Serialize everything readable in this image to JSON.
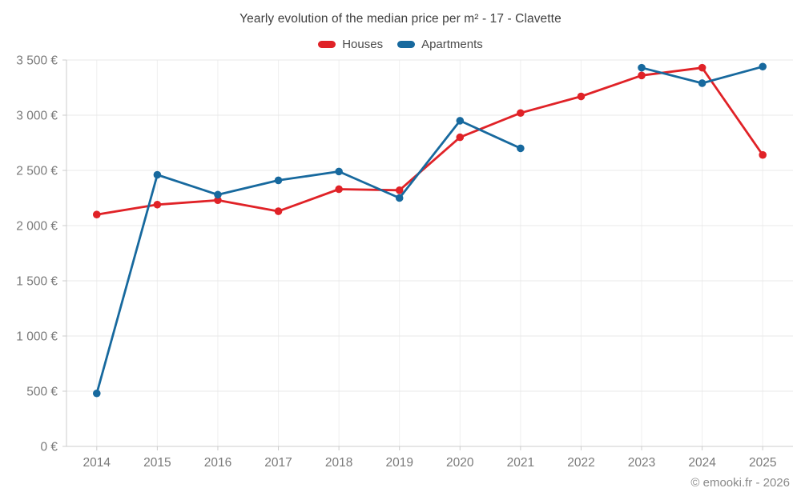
{
  "chart_data": {
    "type": "line",
    "title": "Yearly evolution of the median price per m² - 17 - Clavette",
    "categories": [
      "2014",
      "2015",
      "2016",
      "2017",
      "2018",
      "2019",
      "2020",
      "2021",
      "2022",
      "2023",
      "2024",
      "2025"
    ],
    "series": [
      {
        "name": "Houses",
        "color": "#e02227",
        "values": [
          2100,
          2190,
          2230,
          2130,
          2330,
          2320,
          2800,
          3020,
          3170,
          3360,
          3430,
          2640
        ]
      },
      {
        "name": "Apartments",
        "color": "#17699e",
        "values": [
          480,
          2460,
          2280,
          2410,
          2490,
          2250,
          2950,
          2700,
          null,
          3430,
          3290,
          3440
        ]
      }
    ],
    "ylim": [
      0,
      3500
    ],
    "ytick_step": 500,
    "ytick_labels": [
      "0 €",
      "500 €",
      "1 000 €",
      "1 500 €",
      "2 000 €",
      "2 500 €",
      "3 000 €",
      "3 500 €"
    ],
    "grid": true,
    "legend_position": "top",
    "grid_color": "#e8e8e8",
    "vgrid_color": "#efefef",
    "axis_color": "#cccccc",
    "label_color": "#7a7a7a",
    "currency_suffix": " €"
  },
  "footer": {
    "credit": "© emooki.fr - 2026"
  }
}
